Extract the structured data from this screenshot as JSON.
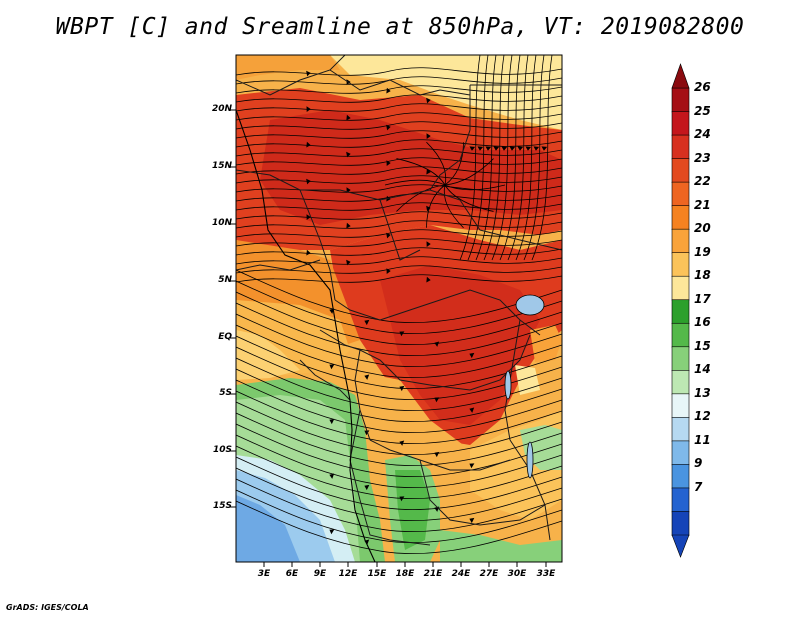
{
  "title": "WBPT [C] and Sreamline at 850hPa, VT: 2019082800",
  "credit": "GrADS: IGES/COLA",
  "map": {
    "lat_labels": [
      "20N",
      "15N",
      "10N",
      "5N",
      "EQ",
      "5S",
      "10S",
      "15S"
    ],
    "lon_labels": [
      "3E",
      "6E",
      "9E",
      "12E",
      "15E",
      "18E",
      "21E",
      "24E",
      "27E",
      "30E",
      "33E"
    ]
  },
  "colorbar": {
    "labels": [
      "26",
      "25",
      "24",
      "23",
      "22",
      "21",
      "20",
      "19",
      "18",
      "17",
      "16",
      "15",
      "14",
      "13",
      "12",
      "11",
      "9",
      "7"
    ],
    "colors": [
      "#a50f15",
      "#c4161c",
      "#d7301f",
      "#e34a1f",
      "#ee6521",
      "#f58220",
      "#f9a33a",
      "#fbc35a",
      "#fde79a",
      "#2ca02c",
      "#54b94a",
      "#87d07a",
      "#bde8b3",
      "#e8f6f8",
      "#b6d9f1",
      "#7fb9ea",
      "#4a94e0",
      "#2463d0",
      "#1544b8"
    ]
  }
}
